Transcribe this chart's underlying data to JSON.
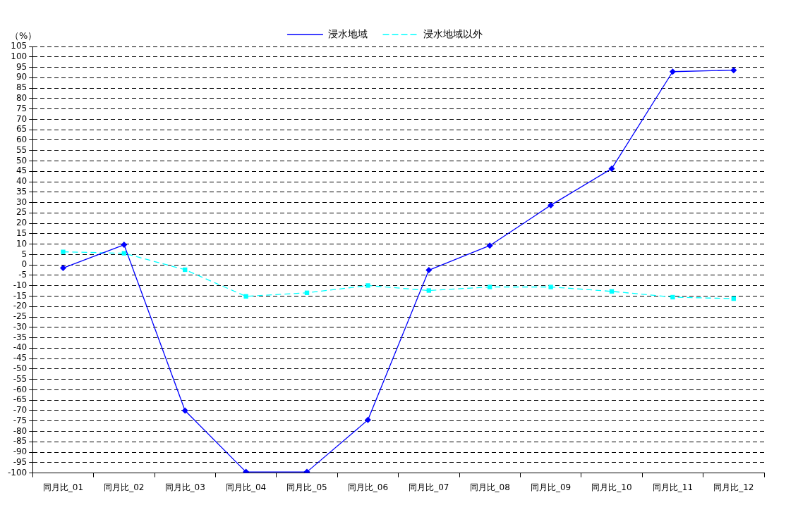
{
  "chart_data": {
    "type": "line",
    "ylabel": "（%）",
    "categories": [
      "同月比_01",
      "同月比_02",
      "同月比_03",
      "同月比_04",
      "同月比_05",
      "同月比_06",
      "同月比_07",
      "同月比_08",
      "同月比_09",
      "同月比_10",
      "同月比_11",
      "同月比_12"
    ],
    "series": [
      {
        "name": "浸水地域",
        "color": "#0000ff",
        "marker": "diamond",
        "line_style": "solid",
        "values": [
          -1.5,
          9.7,
          -70,
          -99.5,
          -99.5,
          -74.5,
          -2.5,
          9.3,
          28.7,
          46.3,
          92.9,
          93.6
        ]
      },
      {
        "name": "浸水地域以外",
        "color": "#00ffff",
        "marker": "square",
        "line_style": "dashed",
        "values": [
          6.3,
          5.6,
          -2.3,
          -15.1,
          -13.4,
          -9.9,
          -12.3,
          -10.6,
          -10.6,
          -12.7,
          -15.5,
          -16.2
        ]
      }
    ],
    "ylim": [
      -100,
      105
    ],
    "yticks": [
      -100,
      -95,
      -90,
      -85,
      -80,
      -75,
      -70,
      -65,
      -60,
      -55,
      -50,
      -45,
      -40,
      -35,
      -30,
      -25,
      -20,
      -15,
      -10,
      -5,
      0,
      5,
      10,
      15,
      20,
      25,
      30,
      35,
      40,
      45,
      50,
      55,
      60,
      65,
      70,
      75,
      80,
      85,
      90,
      95,
      100,
      105
    ],
    "grid": "y",
    "legend": "top"
  }
}
